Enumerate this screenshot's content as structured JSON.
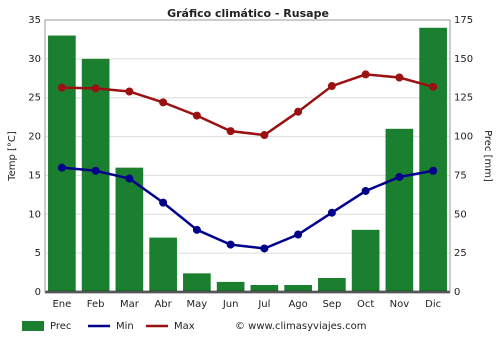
{
  "chart_data": {
    "type": "bar",
    "title": "Gráfico climático - Rusape",
    "ylabel": "Temp [°C]",
    "y2label": "Prec [mm]",
    "categories": [
      "Ene",
      "Feb",
      "Mar",
      "Abr",
      "May",
      "Jun",
      "Jul",
      "Ago",
      "Sep",
      "Oct",
      "Nov",
      "Dic"
    ],
    "series": [
      {
        "name": "Prec",
        "type": "bar",
        "axis": "y2",
        "color": "#1a7f2e",
        "values": [
          165,
          150,
          80,
          35,
          12,
          6.5,
          4.5,
          4.5,
          9,
          40,
          105,
          170
        ]
      },
      {
        "name": "Min",
        "type": "line",
        "color": "#00008b",
        "values": [
          16.0,
          15.6,
          14.6,
          11.5,
          8.0,
          6.1,
          5.6,
          7.4,
          10.2,
          13.0,
          14.8,
          15.6
        ]
      },
      {
        "name": "Max",
        "type": "line",
        "color": "#9b1111",
        "values": [
          26.3,
          26.2,
          25.8,
          24.4,
          22.7,
          20.7,
          20.2,
          23.2,
          26.5,
          28.0,
          27.6,
          26.4
        ]
      }
    ],
    "ylim": [
      0,
      35
    ],
    "yticks": [
      0,
      5,
      10,
      15,
      20,
      25,
      30,
      35
    ],
    "y2lim": [
      0,
      175
    ],
    "y2ticks": [
      0,
      25,
      50,
      75,
      100,
      125,
      150,
      175
    ],
    "grid": true,
    "source": "© www.climasyviajes.com"
  }
}
